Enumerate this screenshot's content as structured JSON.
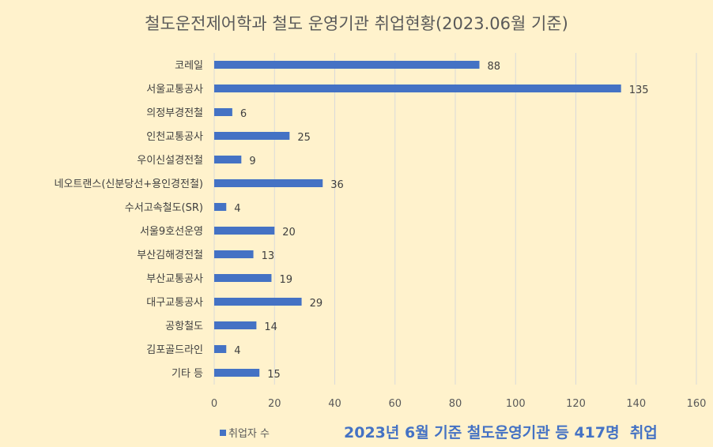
{
  "chart_data": {
    "type": "bar",
    "orientation": "horizontal",
    "title": "철도운전제어학과 철도 운영기관 취업현황(2023.06월 기준)",
    "categories": [
      "코레일",
      "서울교통공사",
      "의정부경전철",
      "인천교통공사",
      "우이신설경전철",
      "네오트랜스(신분당선+용인경전철)",
      "수서고속철도(SR)",
      "서울9호선운영",
      "부산김해경전철",
      "부산교통공사",
      "대구교통공사",
      "공항철도",
      "김포골드라인",
      "기타 등"
    ],
    "series": [
      {
        "name": "취업자 수",
        "values": [
          88,
          135,
          6,
          25,
          9,
          36,
          4,
          20,
          13,
          19,
          29,
          14,
          4,
          15
        ],
        "color": "#4472C4"
      }
    ],
    "xlim": [
      0,
      160
    ],
    "xticks": [
      "0",
      "20",
      "40",
      "60",
      "80",
      "100",
      "120",
      "140",
      "160"
    ],
    "grid": true,
    "legend": "bottom-left",
    "annotation": "2023년 6월 기준 철도운영기관 등 417명  취업"
  }
}
